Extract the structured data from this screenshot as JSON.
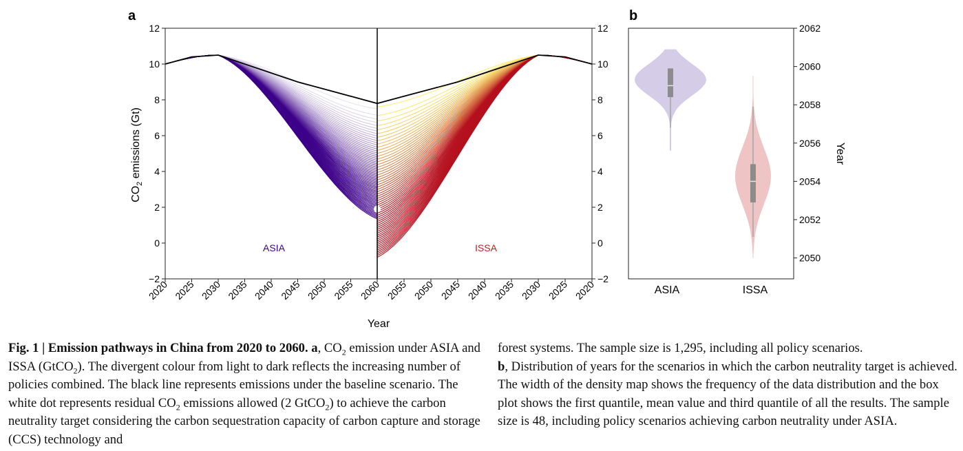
{
  "panel_a": {
    "label": "a",
    "ylabel_pre": "CO",
    "ylabel_sub": "2",
    "ylabel_post": " emissions (Gt)",
    "xlabel": "Year",
    "left_ticks": [
      "2020",
      "2025",
      "2030",
      "2035",
      "2040",
      "2045",
      "2050",
      "2055",
      "2060"
    ],
    "right_ticks": [
      "2055",
      "2050",
      "2045",
      "2040",
      "2035",
      "2030",
      "2025",
      "2020"
    ],
    "y_ticks": [
      "12",
      "10",
      "8",
      "6",
      "4",
      "2",
      "0",
      "−2"
    ],
    "asia_label": "ASIA",
    "issa_label": "ISSA",
    "colors": {
      "asia_dark": "#3d0089",
      "asia_light": "#e9e3f2",
      "issa_dark": "#b5101e",
      "issa_light": "#ffef74",
      "baseline": "#000000",
      "asia_text": "#3d0089",
      "issa_text": "#c41e24"
    }
  },
  "panel_b": {
    "label": "b",
    "y_ticks": [
      "2062",
      "2060",
      "2058",
      "2056",
      "2054",
      "2052",
      "2050"
    ],
    "ylabel": "Year",
    "categories": [
      "ASIA",
      "ISSA"
    ],
    "colors": {
      "asia_fill": "#d5cde8",
      "issa_fill": "#efc4c4",
      "box": "#8c8c8c",
      "whisker": "#a4a4a4"
    }
  },
  "chart_data": [
    {
      "type": "line",
      "title": "",
      "xlabel": "Year",
      "ylabel": "CO2 emissions (Gt)",
      "ylim": [
        -2,
        12
      ],
      "x_asia": [
        2020,
        2030,
        2060
      ],
      "x_issa_mirrored": [
        2060,
        2030,
        2020
      ],
      "series": [
        {
          "name": "Baseline",
          "x": [
            2020,
            2025,
            2030,
            2035,
            2040,
            2045,
            2050,
            2055,
            2060
          ],
          "values": [
            10.0,
            10.4,
            10.5,
            10.0,
            9.5,
            9.0,
            8.6,
            8.2,
            7.8
          ]
        },
        {
          "name": "ASIA",
          "end_2060_min": 1.35,
          "end_2060_max": 7.8,
          "peak_2030": 10.5
        },
        {
          "name": "ISSA",
          "end_2060_min": -0.8,
          "end_2060_max": 7.9,
          "peak_2030": 10.5
        }
      ],
      "annotations": [
        {
          "label": "residual CO2 allowed",
          "x": 2060,
          "y": 1.9
        }
      ],
      "grid": false,
      "n_scenarios": 1295
    },
    {
      "type": "violin",
      "title": "",
      "xlabel": "",
      "ylabel": "Year",
      "ylim": [
        2049,
        2062
      ],
      "categories": [
        "ASIA",
        "ISSA"
      ],
      "series": [
        {
          "name": "ASIA",
          "min": 2055.6,
          "q1": 2058.4,
          "median": 2059.0,
          "q3": 2059.9,
          "max": 2060.9,
          "whisker_low": 2056.8
        },
        {
          "name": "ISSA",
          "min": 2050.0,
          "q1": 2052.9,
          "median": 2054.0,
          "q3": 2054.9,
          "max": 2059.5,
          "whisker_low": 2051.1,
          "whisker_high": 2057.9
        }
      ],
      "n": 48
    }
  ],
  "caption": {
    "lead": "Fig. 1",
    "sep": " | ",
    "bold_title": "Emission pathways in China from 2020 to 2060.",
    "a_label": " a",
    "t1": ", CO",
    "t1_sub": "2",
    "t2": " emission under ASIA and ISSA (GtCO",
    "t2_sub": "2",
    "t3": "). The divergent colour from light to dark reflects the increasing number of policies combined. The black line represents emissions under the baseline scenario. The white dot represents residual CO",
    "t3_sub": "2",
    "t4": " emissions allowed (2 GtCO",
    "t4_sub": "2",
    "t5": ") to achieve the carbon neutrality target considering the carbon sequestration capacity of carbon capture and storage (CCS) technology and",
    "r1": "forest systems. The sample size is 1,295, including all policy scenarios.",
    "b_label": "b",
    "r2": ", Distribution of years for the scenarios in which the carbon neutrality target is achieved. The width of the density map shows the frequency of the data distribution and the box plot shows the first quantile, mean value and third quantile of all the results. The sample size is 48, including policy scenarios achieving carbon neutrality under ASIA."
  }
}
